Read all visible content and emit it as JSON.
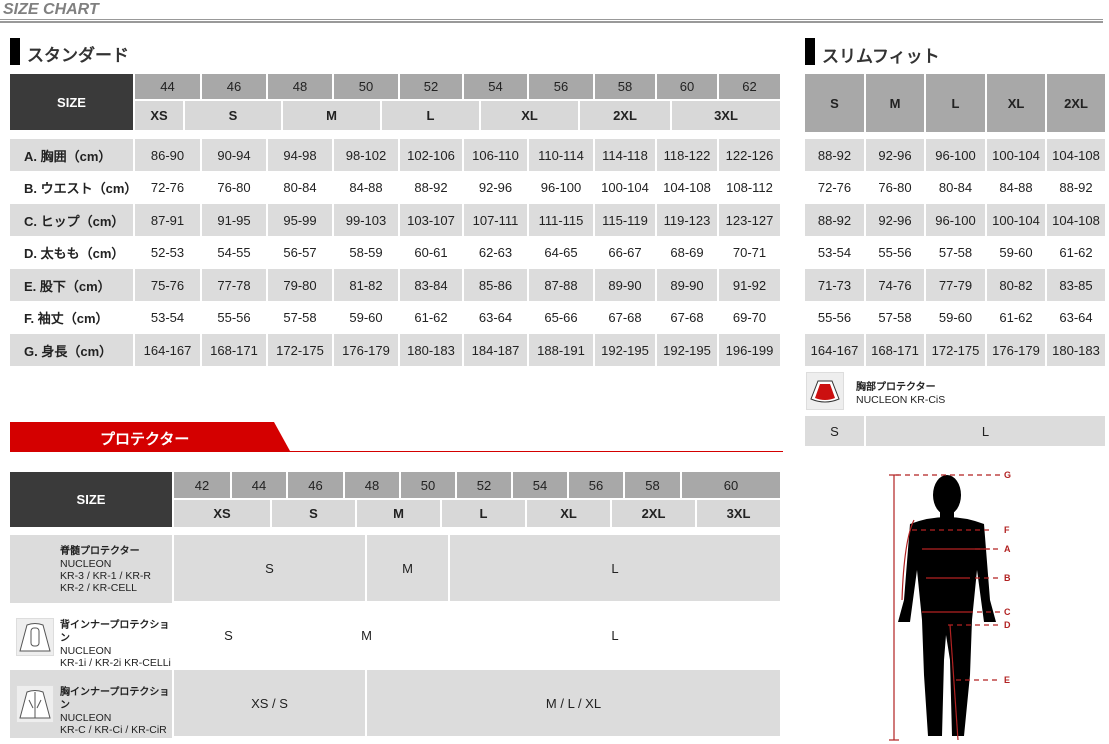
{
  "header": {
    "title": "SIZE CHART"
  },
  "standard": {
    "title": "スタンダード",
    "size_label": "SIZE",
    "numbers": [
      "44",
      "46",
      "48",
      "50",
      "52",
      "54",
      "56",
      "58",
      "60",
      "62"
    ],
    "letters": [
      "XS",
      "S",
      "M",
      "L",
      "XL",
      "2XL",
      "3XL"
    ],
    "rows": [
      {
        "label": "A. 胸囲（cm）",
        "values": [
          "86-90",
          "90-94",
          "94-98",
          "98-102",
          "102-106",
          "106-110",
          "110-114",
          "114-118",
          "118-122",
          "122-126"
        ]
      },
      {
        "label": "B. ウエスト（cm）",
        "values": [
          "72-76",
          "76-80",
          "80-84",
          "84-88",
          "88-92",
          "92-96",
          "96-100",
          "100-104",
          "104-108",
          "108-112"
        ]
      },
      {
        "label": "C. ヒップ（cm）",
        "values": [
          "87-91",
          "91-95",
          "95-99",
          "99-103",
          "103-107",
          "107-111",
          "111-115",
          "115-119",
          "119-123",
          "123-127"
        ]
      },
      {
        "label": "D. 太もも（cm）",
        "values": [
          "52-53",
          "54-55",
          "56-57",
          "58-59",
          "60-61",
          "62-63",
          "64-65",
          "66-67",
          "68-69",
          "70-71"
        ]
      },
      {
        "label": "E. 股下（cm）",
        "values": [
          "75-76",
          "77-78",
          "79-80",
          "81-82",
          "83-84",
          "85-86",
          "87-88",
          "89-90",
          "89-90",
          "91-92"
        ]
      },
      {
        "label": "F. 袖丈（cm）",
        "values": [
          "53-54",
          "55-56",
          "57-58",
          "59-60",
          "61-62",
          "63-64",
          "65-66",
          "67-68",
          "67-68",
          "69-70"
        ]
      },
      {
        "label": "G. 身長（cm）",
        "values": [
          "164-167",
          "168-171",
          "172-175",
          "176-179",
          "180-183",
          "184-187",
          "188-191",
          "192-195",
          "192-195",
          "196-199"
        ]
      }
    ]
  },
  "slim": {
    "title": "スリムフィット",
    "letters": [
      "S",
      "M",
      "L",
      "XL",
      "2XL"
    ],
    "rows": [
      [
        "88-92",
        "92-96",
        "96-100",
        "100-104",
        "104-108"
      ],
      [
        "72-76",
        "76-80",
        "80-84",
        "84-88",
        "88-92"
      ],
      [
        "88-92",
        "92-96",
        "96-100",
        "100-104",
        "104-108"
      ],
      [
        "53-54",
        "55-56",
        "57-58",
        "59-60",
        "61-62"
      ],
      [
        "71-73",
        "74-76",
        "77-79",
        "80-82",
        "83-85"
      ],
      [
        "55-56",
        "57-58",
        "59-60",
        "61-62",
        "63-64"
      ],
      [
        "164-167",
        "168-171",
        "172-175",
        "176-179",
        "180-183"
      ]
    ],
    "chest_protector": {
      "name": "胸部プロテクター",
      "model": "NUCLEON KR-CiS",
      "sizes": [
        "S",
        "L"
      ]
    }
  },
  "protector": {
    "title": "プロテクター",
    "size_label": "SIZE",
    "numbers": [
      "42",
      "44",
      "46",
      "48",
      "50",
      "52",
      "54",
      "56",
      "58",
      "60"
    ],
    "letters": [
      "XS",
      "S",
      "M",
      "L",
      "XL",
      "2XL",
      "3XL"
    ],
    "rows": [
      {
        "name": "脊髄プロテクター",
        "lines": [
          "NUCLEON",
          "KR-3 / KR-1 / KR-R",
          "KR-2 / KR-CELL"
        ],
        "sizes": [
          "S",
          "M",
          "L"
        ]
      },
      {
        "name": "背インナープロテクション",
        "lines": [
          "NUCLEON",
          "KR-1i / KR-2i KR-CELLi"
        ],
        "sizes": [
          "S",
          "M",
          "L"
        ]
      },
      {
        "name": "胸インナープロテクション",
        "lines": [
          "NUCLEON",
          "KR-C / KR-Ci / KR-CiR"
        ],
        "sizes": [
          "XS / S",
          "M / L / XL"
        ]
      }
    ]
  },
  "diagram": {
    "markers": [
      "G",
      "F",
      "A",
      "B",
      "C",
      "D",
      "E"
    ],
    "accent": "#b22222"
  },
  "colors": {
    "red": "#d40000",
    "dark": "#3a3a3a",
    "header_gray": "#a8a8a8",
    "row_gray": "#dcdcdc"
  }
}
